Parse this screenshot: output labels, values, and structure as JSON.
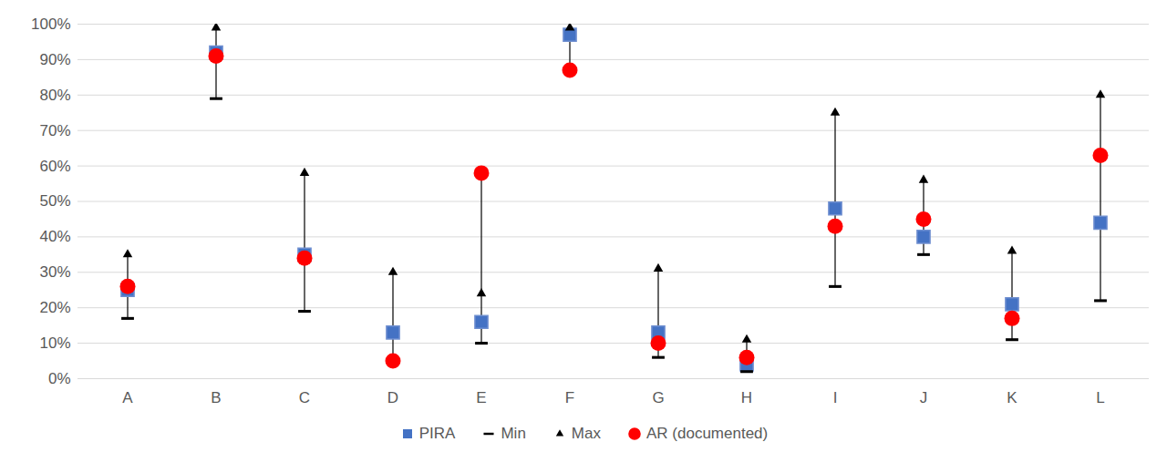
{
  "chart_data": {
    "type": "range_dot",
    "categories": [
      "A",
      "B",
      "C",
      "D",
      "E",
      "F",
      "G",
      "H",
      "I",
      "J",
      "K",
      "L"
    ],
    "series": [
      {
        "name": "PIRA",
        "color": "#4472c4",
        "marker": "square",
        "values": [
          25,
          92,
          35,
          13,
          16,
          97,
          13,
          4,
          48,
          40,
          21,
          44
        ]
      },
      {
        "name": "Min",
        "color": "#000000",
        "marker": "dash",
        "values": [
          17,
          79,
          19,
          5,
          10,
          87,
          6,
          2,
          26,
          35,
          11,
          22
        ]
      },
      {
        "name": "Max",
        "color": "#000000",
        "marker": "triangle",
        "values": [
          35,
          99,
          58,
          30,
          24,
          99,
          31,
          11,
          75,
          56,
          36,
          80
        ]
      },
      {
        "name": "AR (documented)",
        "color": "#ff0000",
        "marker": "circle",
        "values": [
          26,
          91,
          34,
          5,
          58,
          87,
          10,
          6,
          43,
          45,
          17,
          63
        ]
      }
    ],
    "ylim": [
      0,
      100
    ],
    "yticks": [
      {
        "value": 0,
        "label": "0%"
      },
      {
        "value": 10,
        "label": "10%"
      },
      {
        "value": 20,
        "label": "20%"
      },
      {
        "value": 30,
        "label": "30%"
      },
      {
        "value": 40,
        "label": "40%"
      },
      {
        "value": 50,
        "label": "50%"
      },
      {
        "value": 60,
        "label": "60%"
      },
      {
        "value": 70,
        "label": "70%"
      },
      {
        "value": 80,
        "label": "80%"
      },
      {
        "value": 90,
        "label": "90%"
      },
      {
        "value": 100,
        "label": "100%"
      }
    ],
    "grid": true,
    "legend": "bottom"
  }
}
